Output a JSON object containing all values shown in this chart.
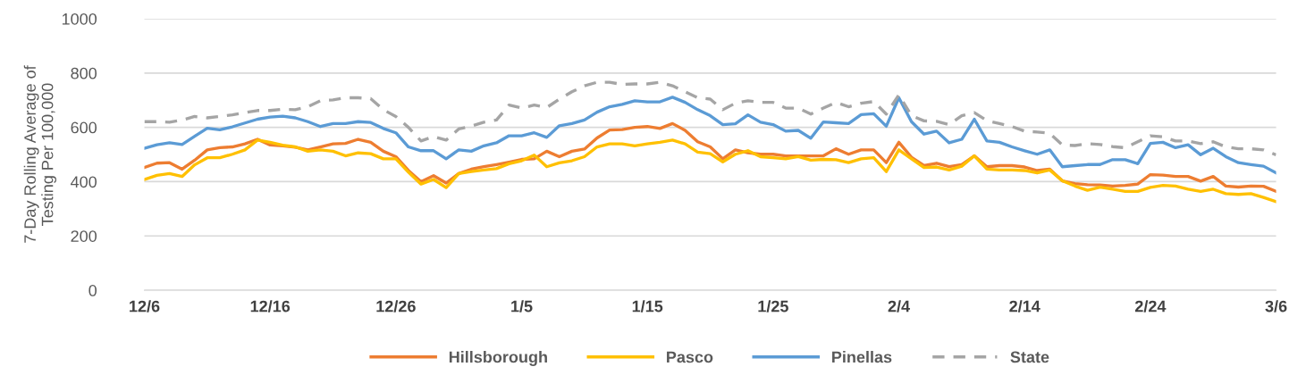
{
  "chart_data": {
    "type": "line",
    "ylabel": "7-Day Rolling Average of\nTesting Per 100,000",
    "categories": [
      "12/6",
      null,
      null,
      null,
      null,
      null,
      null,
      null,
      null,
      null,
      "12/16",
      null,
      null,
      null,
      null,
      null,
      null,
      null,
      null,
      null,
      "12/26",
      null,
      null,
      null,
      null,
      null,
      null,
      null,
      null,
      null,
      "1/5",
      null,
      null,
      null,
      null,
      null,
      null,
      null,
      null,
      null,
      "1/15",
      null,
      null,
      null,
      null,
      null,
      null,
      null,
      null,
      null,
      "1/25",
      null,
      null,
      null,
      null,
      null,
      null,
      null,
      null,
      null,
      "2/4",
      null,
      null,
      null,
      null,
      null,
      null,
      null,
      null,
      null,
      "2/14",
      null,
      null,
      null,
      null,
      null,
      null,
      null,
      null,
      null,
      "2/24",
      null,
      null,
      null,
      null,
      null,
      null,
      null,
      null,
      null,
      "3/6"
    ],
    "series": [
      {
        "name": "Hillsborough",
        "color": "#ed7d31",
        "line_style": "solid",
        "values": [
          452,
          468,
          470,
          446,
          479,
          517,
          525,
          528,
          539,
          556,
          535,
          532,
          527,
          517,
          528,
          539,
          541,
          556,
          545,
          512,
          492,
          441,
          400,
          422,
          395,
          430,
          446,
          455,
          463,
          472,
          482,
          484,
          512,
          492,
          512,
          520,
          561,
          590,
          592,
          600,
          603,
          596,
          614,
          589,
          547,
          528,
          484,
          517,
          506,
          501,
          501,
          495,
          495,
          495,
          495,
          521,
          501,
          517,
          517,
          470,
          545,
          490,
          459,
          468,
          455,
          463,
          495,
          455,
          459,
          459,
          454,
          441,
          446,
          403,
          393,
          389,
          388,
          384,
          386,
          391,
          426,
          424,
          419,
          419,
          402,
          419,
          384,
          380,
          384,
          383,
          364
        ]
      },
      {
        "name": "Pasco",
        "color": "#ffc000",
        "line_style": "solid",
        "values": [
          408,
          423,
          430,
          419,
          462,
          488,
          488,
          501,
          517,
          553,
          545,
          534,
          528,
          512,
          517,
          512,
          495,
          506,
          503,
          484,
          484,
          435,
          391,
          408,
          378,
          430,
          437,
          443,
          448,
          466,
          477,
          498,
          455,
          469,
          477,
          492,
          528,
          539,
          539,
          532,
          539,
          545,
          553,
          539,
          509,
          503,
          473,
          501,
          514,
          492,
          488,
          484,
          492,
          479,
          482,
          481,
          470,
          484,
          488,
          437,
          517,
          484,
          452,
          454,
          443,
          457,
          495,
          446,
          443,
          443,
          441,
          432,
          443,
          403,
          384,
          368,
          380,
          372,
          364,
          364,
          379,
          386,
          384,
          372,
          364,
          372,
          356,
          353,
          356,
          342,
          326
        ]
      },
      {
        "name": "Pinellas",
        "color": "#5b9bd5",
        "line_style": "solid",
        "values": [
          523,
          536,
          543,
          537,
          567,
          597,
          591,
          602,
          616,
          630,
          638,
          641,
          635,
          621,
          603,
          614,
          614,
          621,
          618,
          596,
          580,
          528,
          514,
          514,
          484,
          517,
          512,
          532,
          543,
          569,
          569,
          580,
          563,
          606,
          614,
          627,
          656,
          676,
          685,
          698,
          694,
          694,
          711,
          692,
          665,
          643,
          610,
          613,
          646,
          619,
          610,
          586,
          589,
          560,
          620,
          617,
          614,
          647,
          650,
          604,
          709,
          621,
          575,
          586,
          543,
          556,
          630,
          550,
          545,
          528,
          514,
          501,
          517,
          455,
          459,
          463,
          463,
          481,
          481,
          466,
          541,
          545,
          525,
          536,
          499,
          523,
          492,
          470,
          463,
          457,
          432
        ]
      },
      {
        "name": "State",
        "color": "#a5a5a5",
        "line_style": "dashed",
        "values": [
          621,
          621,
          619,
          627,
          640,
          635,
          640,
          646,
          654,
          662,
          662,
          667,
          665,
          676,
          698,
          701,
          709,
          709,
          706,
          665,
          640,
          600,
          550,
          566,
          553,
          594,
          605,
          619,
          627,
          682,
          671,
          682,
          673,
          704,
          731,
          753,
          766,
          766,
          758,
          760,
          760,
          766,
          753,
          731,
          709,
          704,
          665,
          689,
          698,
          692,
          692,
          671,
          671,
          649,
          671,
          692,
          676,
          689,
          695,
          649,
          720,
          643,
          624,
          622,
          610,
          643,
          654,
          625,
          614,
          603,
          586,
          583,
          578,
          535,
          533,
          540,
          537,
          529,
          525,
          547,
          569,
          565,
          550,
          550,
          540,
          547,
          528,
          521,
          521,
          517,
          499
        ]
      }
    ],
    "ylim": [
      0,
      1000
    ],
    "yticks": [
      0,
      200,
      400,
      600,
      800,
      1000
    ],
    "grid": "y",
    "legend": "bottom",
    "marker": "none"
  }
}
